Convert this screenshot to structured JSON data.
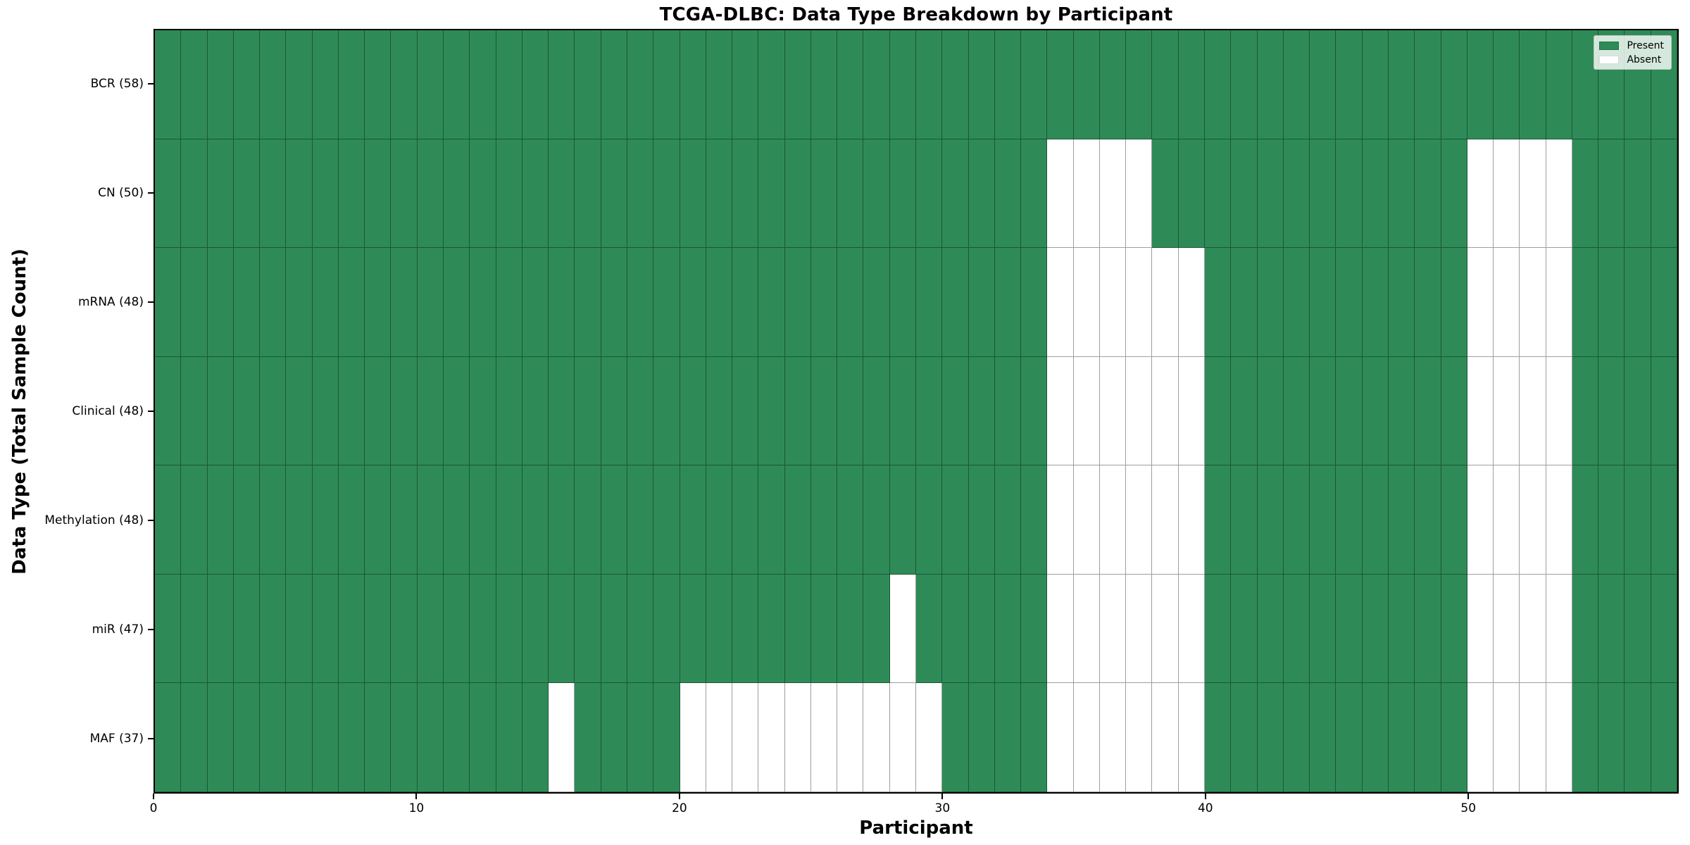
{
  "figure": {
    "title": "TCGA-DLBC: Data Type Breakdown by Participant",
    "x_axis_label": "Participant",
    "y_axis_label": "Data Type (Total Sample Count)"
  },
  "legend": {
    "present_label": "Present",
    "absent_label": "Absent",
    "position": "upper right"
  },
  "colors": {
    "present": "#2E8B57",
    "absent": "#FFFFFF",
    "cell_edge": "rgba(0,0,0,0.38)",
    "spine": "#000000",
    "background": "#FFFFFF",
    "legend_background": "rgba(255,255,255,0.8)"
  },
  "chart_data": {
    "type": "heatmap",
    "title": "TCGA-DLBC: Data Type Breakdown by Participant",
    "xlabel": "Participant",
    "ylabel": "Data Type (Total Sample Count)",
    "x_range": [
      0,
      58
    ],
    "x_ticks": [
      0,
      10,
      20,
      30,
      40,
      50
    ],
    "n_participants": 58,
    "n_rows": 7,
    "grid": "cell-edges",
    "legend_entries": [
      "Present",
      "Absent"
    ],
    "value_encoding": {
      "present": 1,
      "absent": 0
    },
    "rows": [
      {
        "label": "BCR (58)",
        "data_type": "BCR",
        "total_samples": 58,
        "absent_participants": []
      },
      {
        "label": "CN (50)",
        "data_type": "CN",
        "total_samples": 50,
        "absent_participants": [
          34,
          35,
          36,
          37,
          50,
          51,
          52,
          53
        ]
      },
      {
        "label": "mRNA (48)",
        "data_type": "mRNA",
        "total_samples": 48,
        "absent_participants": [
          34,
          35,
          36,
          37,
          38,
          39,
          50,
          51,
          52,
          53
        ]
      },
      {
        "label": "Clinical (48)",
        "data_type": "Clinical",
        "total_samples": 48,
        "absent_participants": [
          34,
          35,
          36,
          37,
          38,
          39,
          50,
          51,
          52,
          53
        ]
      },
      {
        "label": "Methylation (48)",
        "data_type": "Methylation",
        "total_samples": 48,
        "absent_participants": [
          34,
          35,
          36,
          37,
          38,
          39,
          50,
          51,
          52,
          53
        ]
      },
      {
        "label": "miR (47)",
        "data_type": "miR",
        "total_samples": 47,
        "absent_participants": [
          28,
          34,
          35,
          36,
          37,
          38,
          39,
          50,
          51,
          52,
          53
        ]
      },
      {
        "label": "MAF (37)",
        "data_type": "MAF",
        "total_samples": 37,
        "absent_participants": [
          15,
          20,
          21,
          22,
          23,
          24,
          25,
          26,
          27,
          28,
          29,
          34,
          35,
          36,
          37,
          38,
          39,
          50,
          51,
          52,
          53
        ]
      }
    ]
  }
}
